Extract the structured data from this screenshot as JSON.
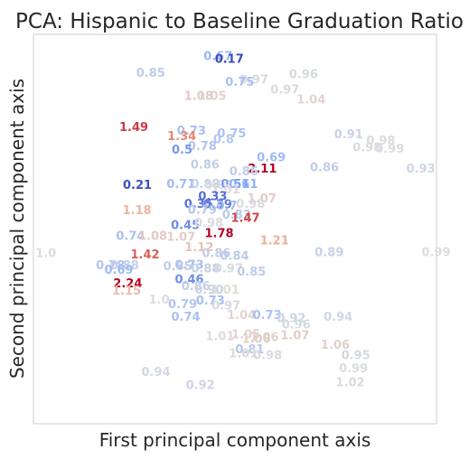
{
  "chart_data": {
    "type": "scatter",
    "title": "PCA: Hispanic to Baseline Graduation Ratio",
    "xlabel": "First principal component axis",
    "ylabel": "Second principal component axis",
    "xlim": [
      0,
      100
    ],
    "ylim": [
      0,
      100
    ],
    "grid": false,
    "legend": "none",
    "colormap": "coolwarm",
    "color_range": [
      0.2,
      1.6
    ],
    "points": [
      {
        "x": 42.2,
        "y": 93.4,
        "label": "0.67"
      },
      {
        "x": 45.0,
        "y": 92.7,
        "label": "0.17"
      },
      {
        "x": 25.5,
        "y": 89.1,
        "label": "0.85"
      },
      {
        "x": 63.4,
        "y": 88.7,
        "label": "0.96"
      },
      {
        "x": 51.1,
        "y": 87.3,
        "label": "0.97"
      },
      {
        "x": 58.8,
        "y": 84.8,
        "label": "0.97"
      },
      {
        "x": 47.6,
        "y": 86.8,
        "label": "0.75"
      },
      {
        "x": 37.4,
        "y": 83.2,
        "label": "1.08"
      },
      {
        "x": 40.7,
        "y": 83.2,
        "label": "1.05"
      },
      {
        "x": 65.3,
        "y": 82.2,
        "label": "1.04"
      },
      {
        "x": 21.3,
        "y": 75.2,
        "label": "1.49"
      },
      {
        "x": 35.6,
        "y": 74.2,
        "label": "0.73"
      },
      {
        "x": 45.6,
        "y": 73.6,
        "label": "0.75"
      },
      {
        "x": 33.2,
        "y": 72.9,
        "label": "1.34"
      },
      {
        "x": 44.6,
        "y": 72.0,
        "label": "0.8"
      },
      {
        "x": 74.6,
        "y": 73.3,
        "label": "0.91"
      },
      {
        "x": 82.6,
        "y": 71.7,
        "label": "0.98"
      },
      {
        "x": 79.2,
        "y": 70.0,
        "label": "0.98"
      },
      {
        "x": 84.8,
        "y": 69.6,
        "label": "0.99"
      },
      {
        "x": 38.3,
        "y": 70.3,
        "label": "0.78"
      },
      {
        "x": 34.3,
        "y": 69.4,
        "label": "0.5"
      },
      {
        "x": 55.4,
        "y": 67.4,
        "label": "0.69"
      },
      {
        "x": 39.0,
        "y": 65.5,
        "label": "0.86"
      },
      {
        "x": 53.2,
        "y": 64.5,
        "label": "2.11"
      },
      {
        "x": 48.6,
        "y": 63.8,
        "label": "0.86"
      },
      {
        "x": 68.6,
        "y": 64.8,
        "label": "0.86"
      },
      {
        "x": 92.5,
        "y": 64.5,
        "label": "0.93"
      },
      {
        "x": 22.2,
        "y": 60.3,
        "label": "0.21"
      },
      {
        "x": 33.0,
        "y": 60.5,
        "label": "0.71"
      },
      {
        "x": 39.1,
        "y": 60.5,
        "label": "0.88"
      },
      {
        "x": 42.5,
        "y": 60.3,
        "label": "0.97"
      },
      {
        "x": 46.5,
        "y": 60.5,
        "label": "0.51"
      },
      {
        "x": 48.5,
        "y": 60.5,
        "label": "0.61"
      },
      {
        "x": 44.1,
        "y": 59.2,
        "label": "1.01"
      },
      {
        "x": 40.9,
        "y": 57.4,
        "label": "0.33"
      },
      {
        "x": 53.1,
        "y": 56.8,
        "label": "1.07"
      },
      {
        "x": 37.4,
        "y": 55.5,
        "label": "0.35"
      },
      {
        "x": 42.1,
        "y": 55.3,
        "label": "0.39"
      },
      {
        "x": 45.4,
        "y": 55.0,
        "label": "0.7"
      },
      {
        "x": 50.3,
        "y": 55.5,
        "label": "0.98"
      },
      {
        "x": 22.1,
        "y": 53.8,
        "label": "1.18"
      },
      {
        "x": 38.3,
        "y": 53.9,
        "label": "0.79"
      },
      {
        "x": 46.8,
        "y": 52.7,
        "label": "0.83"
      },
      {
        "x": 49.0,
        "y": 51.8,
        "label": "1.47"
      },
      {
        "x": 34.1,
        "y": 50.0,
        "label": "0.45"
      },
      {
        "x": 39.9,
        "y": 50.6,
        "label": "0.98"
      },
      {
        "x": 20.5,
        "y": 47.2,
        "label": "0.74"
      },
      {
        "x": 26.0,
        "y": 47.2,
        "label": "1.08"
      },
      {
        "x": 33.0,
        "y": 47.0,
        "label": "1.07"
      },
      {
        "x": 42.5,
        "y": 47.9,
        "label": "1.78"
      },
      {
        "x": 56.2,
        "y": 46.1,
        "label": "1.21"
      },
      {
        "x": 37.5,
        "y": 44.3,
        "label": "1.12"
      },
      {
        "x": 0.5,
        "y": 42.8,
        "label": "1.0"
      },
      {
        "x": 24.1,
        "y": 42.5,
        "label": "1.42"
      },
      {
        "x": 41.8,
        "y": 42.8,
        "label": "0.86"
      },
      {
        "x": 46.3,
        "y": 42.1,
        "label": "0.84"
      },
      {
        "x": 69.8,
        "y": 43.0,
        "label": "0.89"
      },
      {
        "x": 96.3,
        "y": 43.0,
        "label": "0.99"
      },
      {
        "x": 15.5,
        "y": 39.7,
        "label": "0.78"
      },
      {
        "x": 19.0,
        "y": 39.7,
        "label": "0.88"
      },
      {
        "x": 17.6,
        "y": 38.5,
        "label": "0.69"
      },
      {
        "x": 35.1,
        "y": 39.8,
        "label": "0.73"
      },
      {
        "x": 32.2,
        "y": 39.5,
        "label": "0.85"
      },
      {
        "x": 39.1,
        "y": 38.9,
        "label": "0.88"
      },
      {
        "x": 44.8,
        "y": 38.9,
        "label": "0.97"
      },
      {
        "x": 50.5,
        "y": 38.1,
        "label": "0.85"
      },
      {
        "x": 35.1,
        "y": 36.1,
        "label": "0.46"
      },
      {
        "x": 19.8,
        "y": 35.0,
        "label": "2.24"
      },
      {
        "x": 36.7,
        "y": 34.3,
        "label": "0.86"
      },
      {
        "x": 40.0,
        "y": 33.4,
        "label": "0.90"
      },
      {
        "x": 43.9,
        "y": 33.4,
        "label": "1.01"
      },
      {
        "x": 19.5,
        "y": 33.2,
        "label": "1.15"
      },
      {
        "x": 28.6,
        "y": 30.9,
        "label": "1.0"
      },
      {
        "x": 33.4,
        "y": 29.7,
        "label": "0.79"
      },
      {
        "x": 40.3,
        "y": 30.6,
        "label": "0.73"
      },
      {
        "x": 44.2,
        "y": 29.4,
        "label": "0.97"
      },
      {
        "x": 34.2,
        "y": 26.4,
        "label": "0.74"
      },
      {
        "x": 48.0,
        "y": 26.9,
        "label": "1.04"
      },
      {
        "x": 54.4,
        "y": 26.9,
        "label": "0.73"
      },
      {
        "x": 60.4,
        "y": 26.1,
        "label": "0.92"
      },
      {
        "x": 72.0,
        "y": 26.4,
        "label": "0.94"
      },
      {
        "x": 61.6,
        "y": 24.5,
        "label": "0.96"
      },
      {
        "x": 42.7,
        "y": 21.5,
        "label": "1.01"
      },
      {
        "x": 49.1,
        "y": 21.9,
        "label": "1.05"
      },
      {
        "x": 53.7,
        "y": 21.2,
        "label": "1.06"
      },
      {
        "x": 51.7,
        "y": 20.8,
        "label": "1.06"
      },
      {
        "x": 61.3,
        "y": 21.7,
        "label": "1.07"
      },
      {
        "x": 71.3,
        "y": 19.2,
        "label": "1.06"
      },
      {
        "x": 50.1,
        "y": 18.1,
        "label": "0.81"
      },
      {
        "x": 48.5,
        "y": 17.0,
        "label": "1.01"
      },
      {
        "x": 54.5,
        "y": 16.6,
        "label": "0.98"
      },
      {
        "x": 76.4,
        "y": 16.6,
        "label": "0.95"
      },
      {
        "x": 75.8,
        "y": 13.2,
        "label": "0.99"
      },
      {
        "x": 26.8,
        "y": 12.3,
        "label": "0.94"
      },
      {
        "x": 75.0,
        "y": 9.6,
        "label": "1.02"
      },
      {
        "x": 37.8,
        "y": 8.9,
        "label": "0.92"
      }
    ]
  }
}
